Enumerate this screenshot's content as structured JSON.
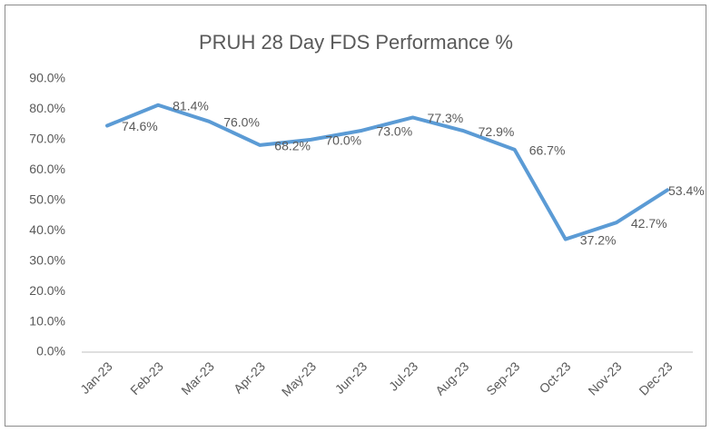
{
  "chart_data": {
    "type": "line",
    "title": "PRUH 28 Day FDS Performance %",
    "categories": [
      "Jan-23",
      "Feb-23",
      "Mar-23",
      "Apr-23",
      "May-23",
      "Jun-23",
      "Jul-23",
      "Aug-23",
      "Sep-23",
      "Oct-23",
      "Nov-23",
      "Dec-23"
    ],
    "values": [
      74.6,
      81.4,
      76.0,
      68.2,
      70.0,
      73.0,
      77.3,
      72.9,
      66.7,
      37.2,
      42.7,
      53.4
    ],
    "value_labels": [
      "74.6%",
      "81.4%",
      "76.0%",
      "68.2%",
      "70.0%",
      "73.0%",
      "77.3%",
      "72.9%",
      "66.7%",
      "37.2%",
      "42.7%",
      "53.4%"
    ],
    "color": "#5b9bd5",
    "ylim": [
      0,
      90
    ],
    "yticks": [
      {
        "value": 0,
        "label": "0.0%"
      },
      {
        "value": 10,
        "label": "10.0%"
      },
      {
        "value": 20,
        "label": "20.0%"
      },
      {
        "value": 30,
        "label": "30.0%"
      },
      {
        "value": 40,
        "label": "40.0%"
      },
      {
        "value": 50,
        "label": "50.0%"
      },
      {
        "value": 60,
        "label": "60.0%"
      },
      {
        "value": 70,
        "label": "70.0%"
      },
      {
        "value": 80,
        "label": "80.0%"
      },
      {
        "value": 90,
        "label": "90.0%"
      }
    ],
    "grid": false
  }
}
